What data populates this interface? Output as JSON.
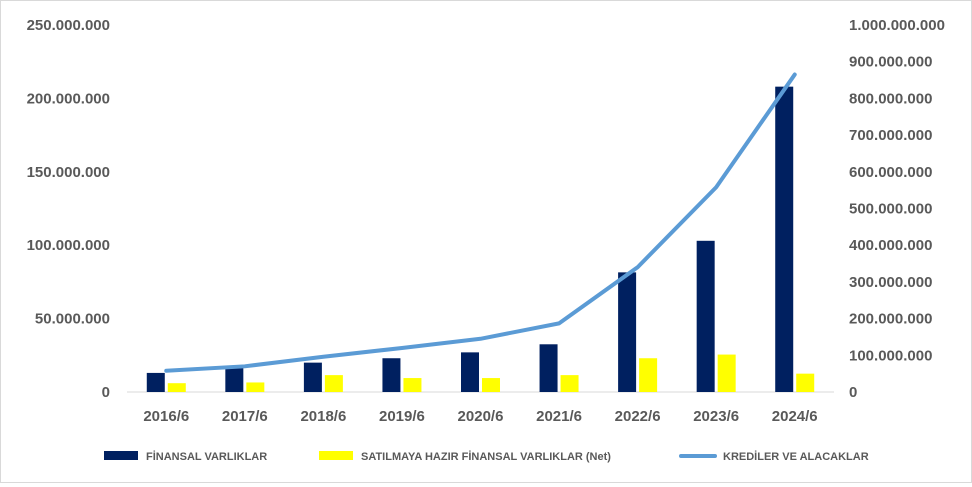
{
  "chart_data": {
    "type": "bar",
    "categories": [
      "2016/6",
      "2017/6",
      "2018/6",
      "2019/6",
      "2020/6",
      "2021/6",
      "2022/6",
      "2023/6",
      "2024/6"
    ],
    "y_left": {
      "ylim": [
        0,
        250000000
      ],
      "ticks": [
        0,
        50000000,
        100000000,
        150000000,
        200000000,
        250000000
      ],
      "tick_labels": [
        "0",
        "50.000.000",
        "100.000.000",
        "150.000.000",
        "200.000.000",
        "250.000.000"
      ]
    },
    "y_right": {
      "ylim": [
        0,
        1000000000
      ],
      "ticks": [
        0,
        100000000,
        200000000,
        300000000,
        400000000,
        500000000,
        600000000,
        700000000,
        800000000,
        900000000,
        1000000000
      ],
      "tick_labels": [
        "0",
        "100.000.000",
        "200.000.000",
        "300.000.000",
        "400.000.000",
        "500.000.000",
        "600.000.000",
        "700.000.000",
        "800.000.000",
        "900.000.000",
        "1.000.000.000"
      ]
    },
    "series": [
      {
        "name": "FİNANSAL VARLIKLAR",
        "type": "bar",
        "axis": "left",
        "color": "#002060",
        "values": [
          13000000,
          17500000,
          20000000,
          23000000,
          27000000,
          32500000,
          81500000,
          103000000,
          208000000
        ]
      },
      {
        "name": "SATILMAYA HAZIR FİNANSAL VARLIKLAR (Net)",
        "type": "bar",
        "axis": "left",
        "color": "#FFFF00",
        "values": [
          6000000,
          6500000,
          11500000,
          9500000,
          9500000,
          11500000,
          23000000,
          25500000,
          12500000
        ]
      },
      {
        "name": "KREDİLER VE ALACAKLAR",
        "type": "line",
        "axis": "right",
        "color": "#5B9BD5",
        "values": [
          58000000,
          70000000,
          96000000,
          120000000,
          145000000,
          187000000,
          340000000,
          558000000,
          865000000
        ]
      }
    ],
    "legend_position": "bottom",
    "grid": false
  }
}
